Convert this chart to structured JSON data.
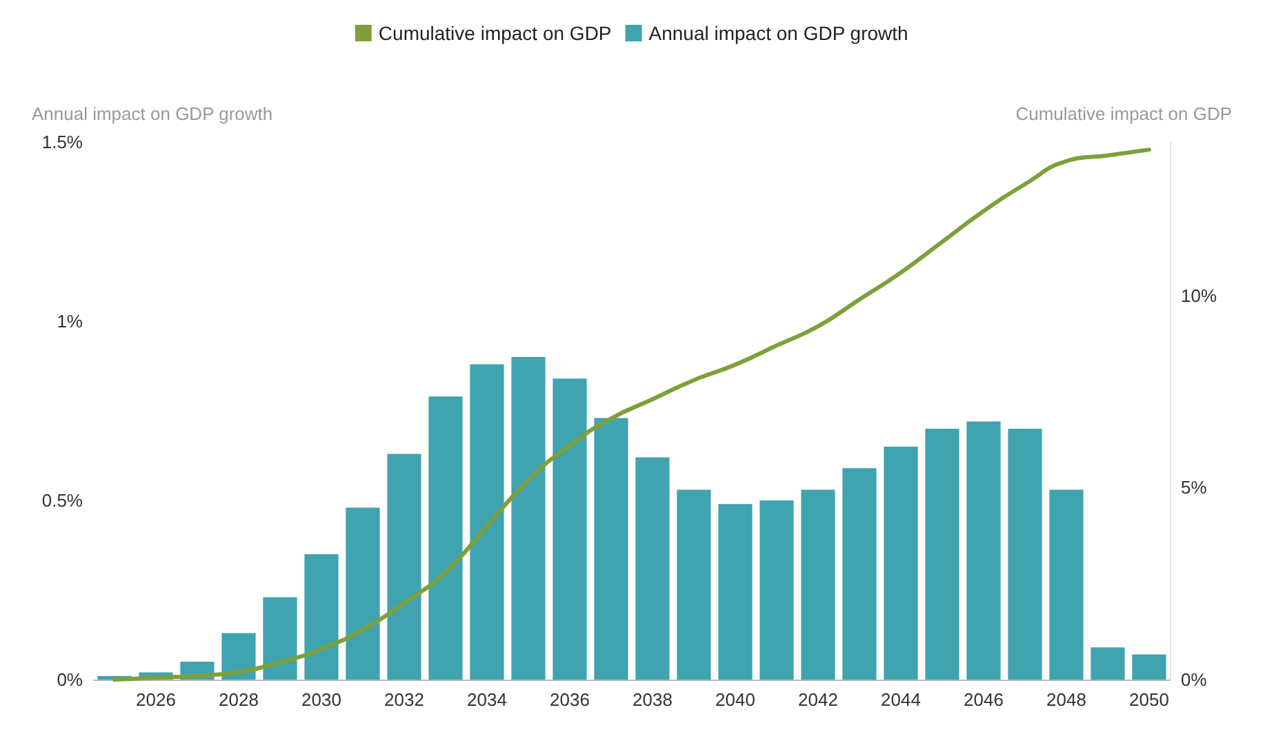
{
  "chart_data": {
    "type": "bar",
    "ylabel": "Annual impact on GDP growth",
    "y2label": "Cumulative impact on GDP",
    "categories": [
      null,
      "2026",
      null,
      "2028",
      null,
      "2030",
      null,
      "2032",
      null,
      "2034",
      null,
      "2036",
      null,
      "2038",
      null,
      "2040",
      null,
      "2042",
      null,
      "2044",
      null,
      "2046",
      null,
      "2048",
      null,
      "2050"
    ],
    "series": [
      {
        "name": "Cumulative impact on GDP",
        "type": "line",
        "axis": "y2",
        "color": "#7ea03a",
        "values": [
          0,
          0.05,
          0.1,
          0.2,
          0.45,
          0.8,
          1.3,
          2.0,
          2.8,
          4.0,
          5.2,
          6.1,
          6.8,
          7.3,
          7.8,
          8.2,
          8.7,
          9.2,
          9.9,
          10.6,
          11.4,
          12.2,
          12.9,
          13.5,
          13.65,
          13.8
        ]
      },
      {
        "name": "Annual impact on GDP growth",
        "color": "#3fa3b0",
        "values": [
          0.01,
          0.02,
          0.05,
          0.13,
          0.23,
          0.35,
          0.48,
          0.63,
          0.79,
          0.88,
          0.9,
          0.84,
          0.73,
          0.62,
          0.53,
          0.49,
          0.5,
          0.53,
          0.59,
          0.65,
          0.7,
          0.72,
          0.7,
          0.53,
          0.09,
          0.07
        ]
      }
    ],
    "ylim": [
      0,
      1.5
    ],
    "yticks": [
      {
        "value": 0,
        "label": "0%"
      },
      {
        "value": 0.5,
        "label": "0.5%"
      },
      {
        "value": 1,
        "label": "1%"
      },
      {
        "value": 1.5,
        "label": "1.5%"
      }
    ],
    "y2lim": [
      0,
      14
    ],
    "y2ticks": [
      {
        "value": 0,
        "label": "0%"
      },
      {
        "value": 5,
        "label": "5%"
      },
      {
        "value": 10,
        "label": "10%"
      }
    ],
    "legend": "top",
    "marker": "none",
    "line_style": "solid"
  }
}
